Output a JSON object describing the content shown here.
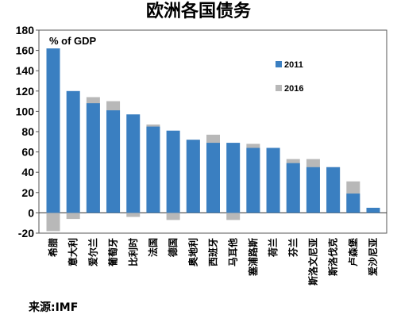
{
  "title": "欧洲各国债务",
  "source": "来源:IMF",
  "chart_data": {
    "type": "bar",
    "ylabel": "% of GDP",
    "ylim": [
      -20,
      180
    ],
    "yticks": [
      -20,
      0,
      20,
      40,
      60,
      80,
      100,
      120,
      140,
      160,
      180
    ],
    "categories": [
      "希腊",
      "意大利",
      "爱尔兰",
      "葡萄牙",
      "比利时",
      "法国",
      "德国",
      "奥地利",
      "西班牙",
      "马耳他",
      "塞浦路斯",
      "荷兰",
      "芬兰",
      "斯洛文尼亚",
      "斯洛伐克",
      "卢森堡",
      "爱沙尼亚"
    ],
    "series": [
      {
        "name": "2011",
        "values": [
          162,
          120,
          108,
          101,
          97,
          85,
          81,
          72,
          69,
          69,
          64,
          64,
          49,
          45,
          45,
          19,
          5
        ],
        "color": "#3a7fc1"
      },
      {
        "name": "2016",
        "values": [
          -18,
          -6,
          114,
          110,
          -4,
          87,
          -7,
          72,
          77,
          -7,
          68,
          64,
          53,
          53,
          45,
          31,
          5
        ],
        "color": "#b8b8b8"
      }
    ],
    "legend_position": "right",
    "grid": false
  }
}
